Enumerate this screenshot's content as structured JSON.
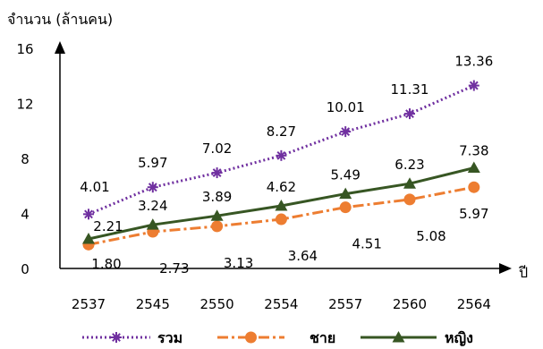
{
  "chart_data": {
    "type": "line",
    "ylabel": "จำนวน (ล้านคน)",
    "xlabel": "ปี",
    "categories": [
      "2537",
      "2545",
      "2550",
      "2554",
      "2557",
      "2560",
      "2564"
    ],
    "yticks": [
      "0",
      "4",
      "8",
      "12",
      "16"
    ],
    "ylim": [
      0,
      16
    ],
    "grid": false,
    "legend_position": "bottom",
    "series": [
      {
        "name": "รวม",
        "values": [
          4.01,
          5.97,
          7.02,
          8.27,
          10.01,
          11.31,
          13.36
        ],
        "color": "#7030a0",
        "marker": "asterisk",
        "line": "dotted"
      },
      {
        "name": "ชาย",
        "values": [
          1.8,
          2.73,
          3.13,
          3.64,
          4.51,
          5.08,
          5.97
        ],
        "color": "#ed7d31",
        "marker": "circle",
        "line": "dashdot"
      },
      {
        "name": "หญิง",
        "values": [
          2.21,
          3.24,
          3.89,
          4.62,
          5.49,
          6.23,
          7.38
        ],
        "color": "#375623",
        "marker": "triangle",
        "line": "solid"
      }
    ],
    "data_labels": {
      "รวม": [
        "4.01",
        "5.97",
        "7.02",
        "8.27",
        "10.01",
        "11.31",
        "13.36"
      ],
      "ชาย": [
        "1.80",
        "2.73",
        "3.13",
        "3.64",
        "4.51",
        "5.08",
        "5.97"
      ],
      "หญิง": [
        "2.21",
        "3.24",
        "3.89",
        "4.62",
        "5.49",
        "6.23",
        "7.38"
      ]
    }
  }
}
